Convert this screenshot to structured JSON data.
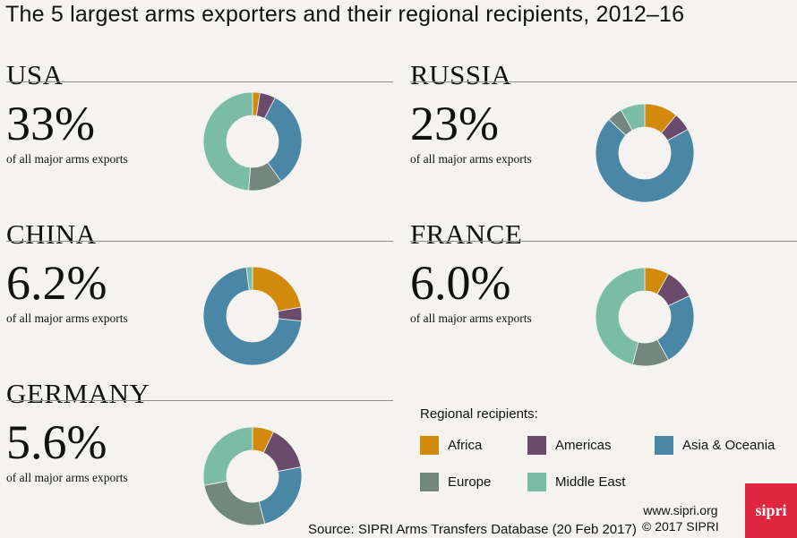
{
  "title": "The 5 largest arms exporters and their regional recipients, 2012–16",
  "subtitle_text": "of all major arms exports",
  "colors": {
    "Africa": "#d18a0c",
    "Americas": "#6a4b6b",
    "Asia & Oceania": "#4a86a6",
    "Europe": "#72877d",
    "Middle East": "#7bbca7"
  },
  "legend": {
    "title": "Regional recipients:",
    "items": [
      "Africa",
      "Americas",
      "Asia & Oceania",
      "Europe",
      "Middle East"
    ]
  },
  "source": "Source: SIPRI Arms Transfers Database (20 Feb 2017)",
  "website": "www.sipri.org",
  "copyright": "© 2017 SIPRI",
  "logo": "sipri",
  "chart_data": [
    {
      "type": "pie",
      "title": "USA",
      "share_label": "33%",
      "categories": [
        "Africa",
        "Americas",
        "Asia & Oceania",
        "Europe",
        "Middle East"
      ],
      "values": [
        2.4,
        5.1,
        32,
        11,
        48
      ]
    },
    {
      "type": "pie",
      "title": "RUSSIA",
      "share_label": "23%",
      "categories": [
        "Africa",
        "Americas",
        "Asia & Oceania",
        "Europe",
        "Middle East"
      ],
      "values": [
        11,
        6,
        70,
        5,
        8
      ]
    },
    {
      "type": "pie",
      "title": "CHINA",
      "share_label": "6.2%",
      "categories": [
        "Africa",
        "Americas",
        "Asia & Oceania",
        "Europe",
        "Middle East"
      ],
      "values": [
        22,
        4.5,
        71,
        0,
        2
      ]
    },
    {
      "type": "pie",
      "title": "FRANCE",
      "share_label": "6.0%",
      "categories": [
        "Africa",
        "Americas",
        "Asia & Oceania",
        "Europe",
        "Middle East"
      ],
      "values": [
        8,
        10,
        24,
        12,
        46
      ]
    },
    {
      "type": "pie",
      "title": "GERMANY",
      "share_label": "5.6%",
      "categories": [
        "Africa",
        "Americas",
        "Asia & Oceania",
        "Europe",
        "Middle East"
      ],
      "values": [
        7,
        15,
        24,
        26,
        28
      ]
    }
  ]
}
